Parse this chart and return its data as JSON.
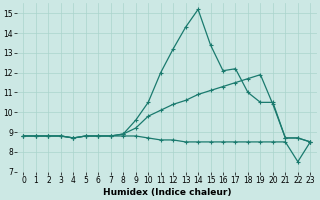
{
  "xlabel": "Humidex (Indice chaleur)",
  "x": [
    0,
    1,
    2,
    3,
    4,
    5,
    6,
    7,
    8,
    9,
    10,
    11,
    12,
    13,
    14,
    15,
    16,
    17,
    18,
    19,
    20,
    21,
    22,
    23
  ],
  "line1": [
    8.8,
    8.8,
    8.8,
    8.8,
    8.7,
    8.8,
    8.8,
    8.8,
    8.9,
    9.6,
    10.5,
    12.0,
    13.2,
    14.3,
    15.2,
    13.4,
    12.1,
    12.2,
    11.0,
    10.5,
    10.5,
    8.7,
    8.7,
    8.5
  ],
  "line2": [
    8.8,
    8.8,
    8.8,
    8.8,
    8.7,
    8.8,
    8.8,
    8.8,
    8.9,
    9.2,
    9.8,
    10.1,
    10.4,
    10.6,
    10.9,
    11.1,
    11.3,
    11.5,
    11.7,
    11.9,
    10.4,
    8.7,
    8.7,
    8.5
  ],
  "line3": [
    8.8,
    8.8,
    8.8,
    8.8,
    8.7,
    8.8,
    8.8,
    8.8,
    8.8,
    8.8,
    8.7,
    8.6,
    8.6,
    8.5,
    8.5,
    8.5,
    8.5,
    8.5,
    8.5,
    8.5,
    8.5,
    8.5,
    7.5,
    8.5
  ],
  "line_color": "#1a7a6e",
  "bg_color": "#cce8e4",
  "grid_color": "#aad4cc",
  "ylim": [
    7,
    15.5
  ],
  "xlim": [
    -0.5,
    23.5
  ],
  "yticks": [
    7,
    8,
    9,
    10,
    11,
    12,
    13,
    14,
    15
  ],
  "xticks": [
    0,
    1,
    2,
    3,
    4,
    5,
    6,
    7,
    8,
    9,
    10,
    11,
    12,
    13,
    14,
    15,
    16,
    17,
    18,
    19,
    20,
    21,
    22,
    23
  ],
  "marker": "+",
  "markersize": 3,
  "linewidth": 0.9,
  "tick_fontsize": 5.5,
  "xlabel_fontsize": 6.5
}
